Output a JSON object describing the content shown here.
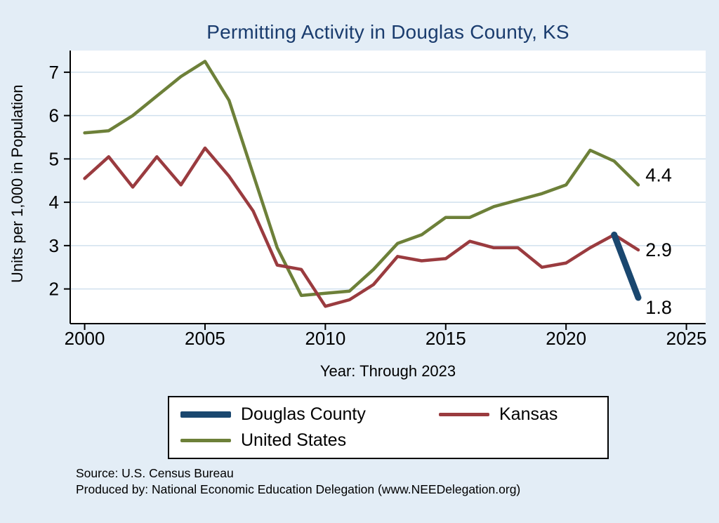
{
  "chart_data": {
    "type": "line",
    "title": "Permitting Activity in Douglas County, KS",
    "xlabel": "Year: Through 2023",
    "ylabel": "Units per 1,000 in Population",
    "x": [
      2000,
      2001,
      2002,
      2003,
      2004,
      2005,
      2006,
      2007,
      2008,
      2009,
      2010,
      2011,
      2012,
      2013,
      2014,
      2015,
      2016,
      2017,
      2018,
      2019,
      2020,
      2021,
      2022,
      2023
    ],
    "series": [
      {
        "name": "Douglas County",
        "color": "#1a476f",
        "line_width": 9,
        "values": [
          null,
          null,
          null,
          null,
          null,
          null,
          null,
          null,
          null,
          null,
          null,
          null,
          null,
          null,
          null,
          null,
          null,
          null,
          null,
          null,
          null,
          null,
          3.25,
          1.8
        ]
      },
      {
        "name": "Kansas",
        "color": "#9a3b3f",
        "line_width": 4.5,
        "values": [
          4.55,
          5.05,
          4.35,
          5.05,
          4.4,
          5.25,
          4.6,
          3.8,
          2.55,
          2.45,
          1.6,
          1.75,
          2.1,
          2.75,
          2.65,
          2.7,
          3.1,
          2.95,
          2.95,
          2.5,
          2.6,
          2.95,
          3.25,
          2.9
        ]
      },
      {
        "name": "United States",
        "color": "#6d8039",
        "line_width": 4.5,
        "values": [
          5.6,
          5.65,
          6.0,
          6.45,
          6.9,
          7.25,
          6.35,
          4.65,
          2.95,
          1.85,
          1.9,
          1.95,
          2.45,
          3.05,
          3.25,
          3.65,
          3.65,
          3.9,
          4.05,
          4.2,
          4.4,
          5.2,
          4.95,
          4.4
        ]
      }
    ],
    "xlim": [
      1999.4,
      2025.8
    ],
    "ylim": [
      1.2,
      7.5
    ],
    "xticks": [
      2000,
      2005,
      2010,
      2015,
      2020,
      2025
    ],
    "yticks": [
      2,
      3,
      4,
      5,
      6,
      7
    ],
    "grid": "horizontal",
    "legend_position": "bottom",
    "end_labels": [
      {
        "text": "4.4",
        "x": 2023.3,
        "y": 4.4,
        "dy": -14
      },
      {
        "text": "2.9",
        "x": 2023.3,
        "y": 2.9,
        "dy": 0
      },
      {
        "text": "1.8",
        "x": 2023.3,
        "y": 1.8,
        "dy": 14
      }
    ]
  },
  "notes": {
    "source": "Source: U.S. Census Bureau",
    "produced_by": "Produced by: National Economic Education Delegation (www.NEEDelegation.org)"
  },
  "colors": {
    "background": "#e3edf6",
    "plot_background": "#ffffff",
    "gridline": "#d0e0ee",
    "axis": "#000000",
    "title": "#1a3c6e",
    "end_label": "#000000"
  }
}
